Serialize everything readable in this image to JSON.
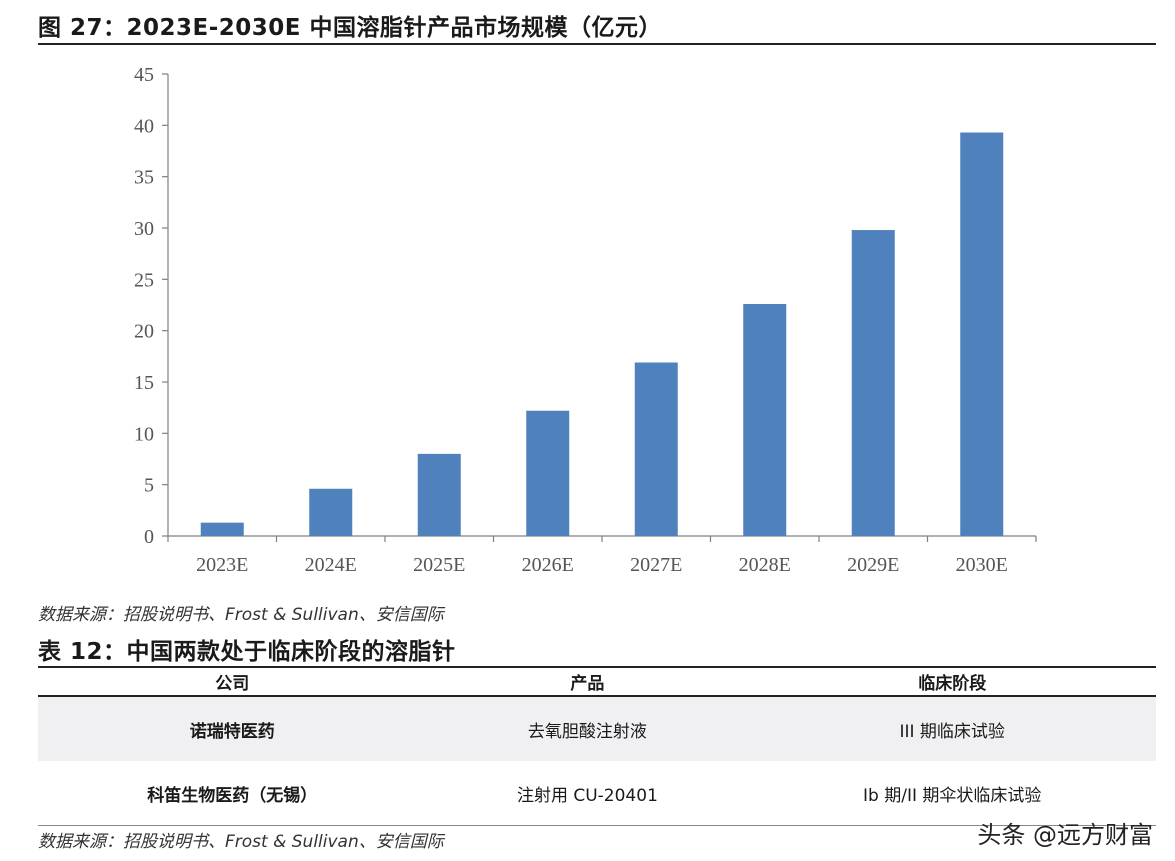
{
  "figure": {
    "title": "图 27：2023E-2030E 中国溶脂针产品市场规模（亿元）",
    "source": "数据来源：招股说明书、Frost & Sullivan、安信国际"
  },
  "chart_data": {
    "type": "bar",
    "categories": [
      "2023E",
      "2024E",
      "2025E",
      "2026E",
      "2027E",
      "2028E",
      "2029E",
      "2030E"
    ],
    "values": [
      1.3,
      4.6,
      8.0,
      12.2,
      16.9,
      22.6,
      29.8,
      39.3
    ],
    "ylim": [
      0,
      45
    ],
    "yticks": [
      0,
      5,
      10,
      15,
      20,
      25,
      30,
      35,
      40,
      45
    ],
    "xlabel": "",
    "ylabel": "",
    "grid": false,
    "bar_color": "#4f81bd"
  },
  "table": {
    "title": "表 12：中国两款处于临床阶段的溶脂针",
    "headers": [
      "公司",
      "产品",
      "临床阶段"
    ],
    "rows": [
      [
        "诺瑞特医药",
        "去氧胆酸注射液",
        "III 期临床试验"
      ],
      [
        "科笛生物医药（无锡）",
        "注射用 CU-20401",
        "Ib 期/II 期伞状临床试验"
      ]
    ],
    "source": "数据来源：招股说明书、Frost & Sullivan、安信国际"
  },
  "watermark": "头条 @远方财富"
}
